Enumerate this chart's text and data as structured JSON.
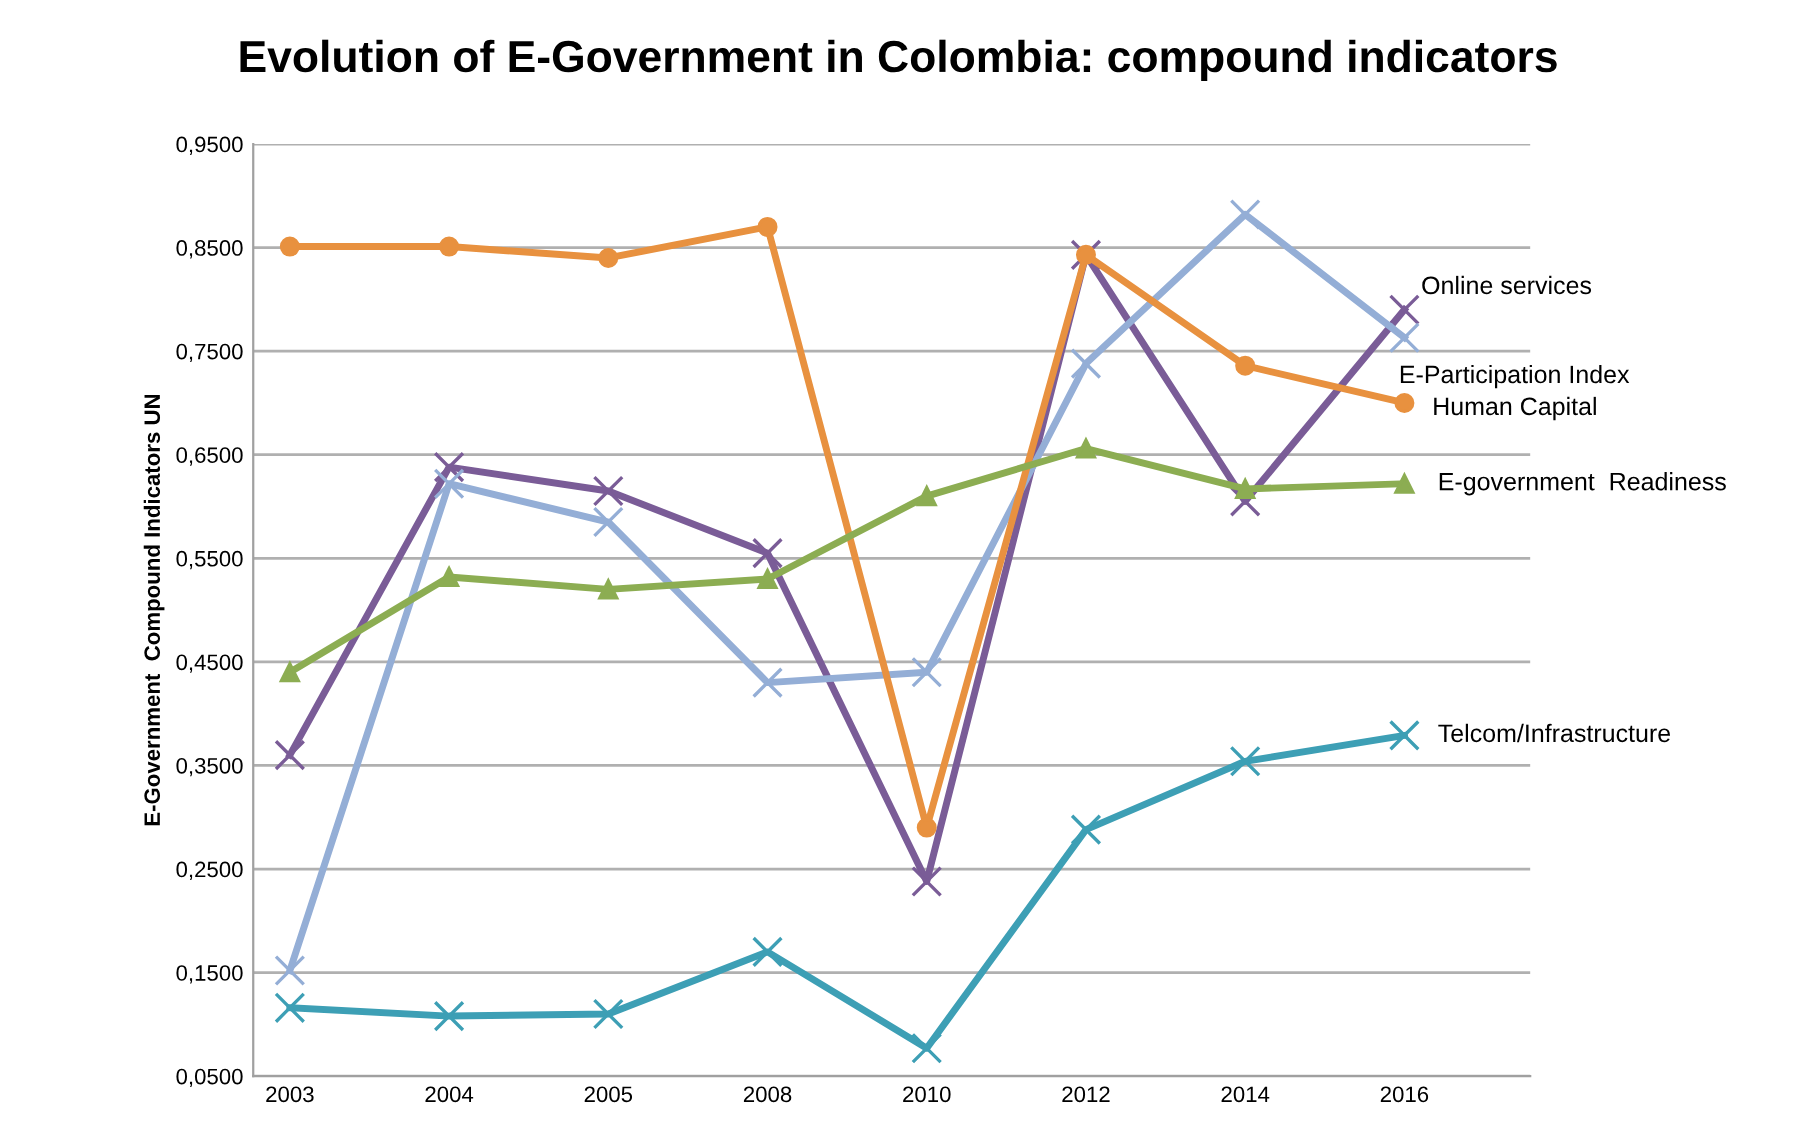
{
  "chart_data": {
    "type": "line",
    "title": "Evolution of E-Government in Colombia: compound indicators",
    "ylabel": "E-Government  Compound Indicators UN",
    "categories": [
      "2003",
      "2004",
      "2005",
      "2008",
      "2010",
      "2012",
      "2014",
      "2016"
    ],
    "series": [
      {
        "name": "Online services",
        "color": "#7a5c97",
        "marker": "cross",
        "values": [
          0.36,
          0.638,
          0.615,
          0.555,
          0.238,
          0.843,
          0.605,
          0.79
        ]
      },
      {
        "name": "E-Participation Index",
        "color": "#94aed6",
        "marker": "cross",
        "values": [
          0.152,
          0.622,
          0.585,
          0.43,
          0.44,
          0.738,
          0.882,
          0.763
        ]
      },
      {
        "name": "Human Capital",
        "color": "#e8913f",
        "marker": "circle",
        "values": [
          0.851,
          0.851,
          0.84,
          0.87,
          0.29,
          0.843,
          0.736,
          0.7
        ]
      },
      {
        "name": "E-government  Readiness",
        "color": "#8cad52",
        "marker": "triangle",
        "values": [
          0.44,
          0.532,
          0.52,
          0.53,
          0.61,
          0.656,
          0.617,
          0.622
        ]
      },
      {
        "name": "Telcom/Infrastructure",
        "color": "#3d9fb5",
        "marker": "cross",
        "values": [
          0.116,
          0.108,
          0.11,
          0.17,
          0.077,
          0.288,
          0.354,
          0.379
        ]
      }
    ],
    "ylim": [
      0.05,
      0.95
    ],
    "yticks": [
      {
        "value": 0.05,
        "label": "0,0500"
      },
      {
        "value": 0.15,
        "label": "0,1500"
      },
      {
        "value": 0.25,
        "label": "0,2500"
      },
      {
        "value": 0.35,
        "label": "0,3500"
      },
      {
        "value": 0.45,
        "label": "0,4500"
      },
      {
        "value": 0.55,
        "label": "0,5500"
      },
      {
        "value": 0.65,
        "label": "0,6500"
      },
      {
        "value": 0.75,
        "label": "0,7500"
      },
      {
        "value": 0.85,
        "label": "0,8500"
      },
      {
        "value": 0.95,
        "label": "0,9500"
      }
    ],
    "grid": "y",
    "legend": false,
    "line_style": "solid"
  }
}
